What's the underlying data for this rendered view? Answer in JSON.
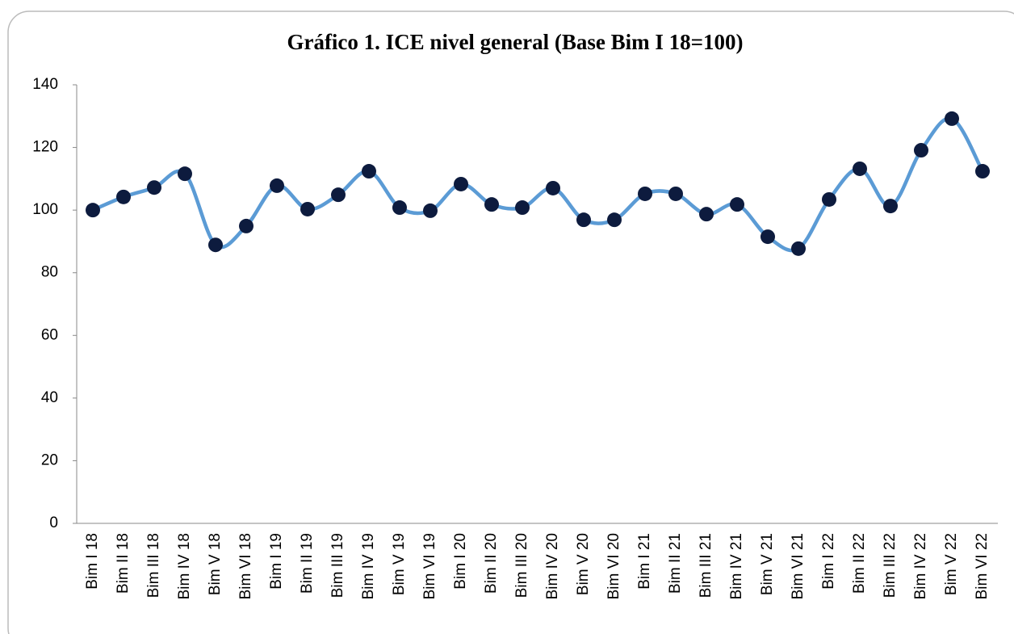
{
  "chart_data": {
    "type": "line",
    "title": "Gráfico 1. ICE nivel general (Base Bim I 18=100)",
    "categories": [
      "Bim I 18",
      "Bim II 18",
      "Bim III 18",
      "Bim IV 18",
      "Bim V 18",
      "Bim VI 18",
      "Bim I 19",
      "Bim II 19",
      "Bim III 19",
      "Bim IV 19",
      "Bim V 19",
      "Bim VI 19",
      "Bim I 20",
      "Bim II 20",
      "Bim III 20",
      "Bim IV 20",
      "Bim V 20",
      "Bim VI 20",
      "Bim I 21",
      "Bim II 21",
      "Bim III 21",
      "Bim IV 21",
      "Bim V 21",
      "Bim VI 21",
      "Bim I 22",
      "Bim II 22",
      "Bim III 22",
      "Bim IV 22",
      "Bim V 22",
      "Bim VI 22"
    ],
    "series": [
      {
        "color": "#5b9bd5",
        "marker_color": "#0d1b3e",
        "values": [
          100,
          104.2,
          107.2,
          111.6,
          88.9,
          94.9,
          107.8,
          100.3,
          104.9,
          112.4,
          100.8,
          99.8,
          108.3,
          101.8,
          100.8,
          107.0,
          96.9,
          96.9,
          105.2,
          105.2,
          98.7,
          101.8,
          91.5,
          87.7,
          103.4,
          113.2,
          101.3,
          119.1,
          129.2,
          112.4
        ]
      }
    ],
    "ylim": [
      0,
      140
    ],
    "yticks": [
      0,
      20,
      40,
      60,
      80,
      100,
      120,
      140
    ],
    "grid": false
  }
}
